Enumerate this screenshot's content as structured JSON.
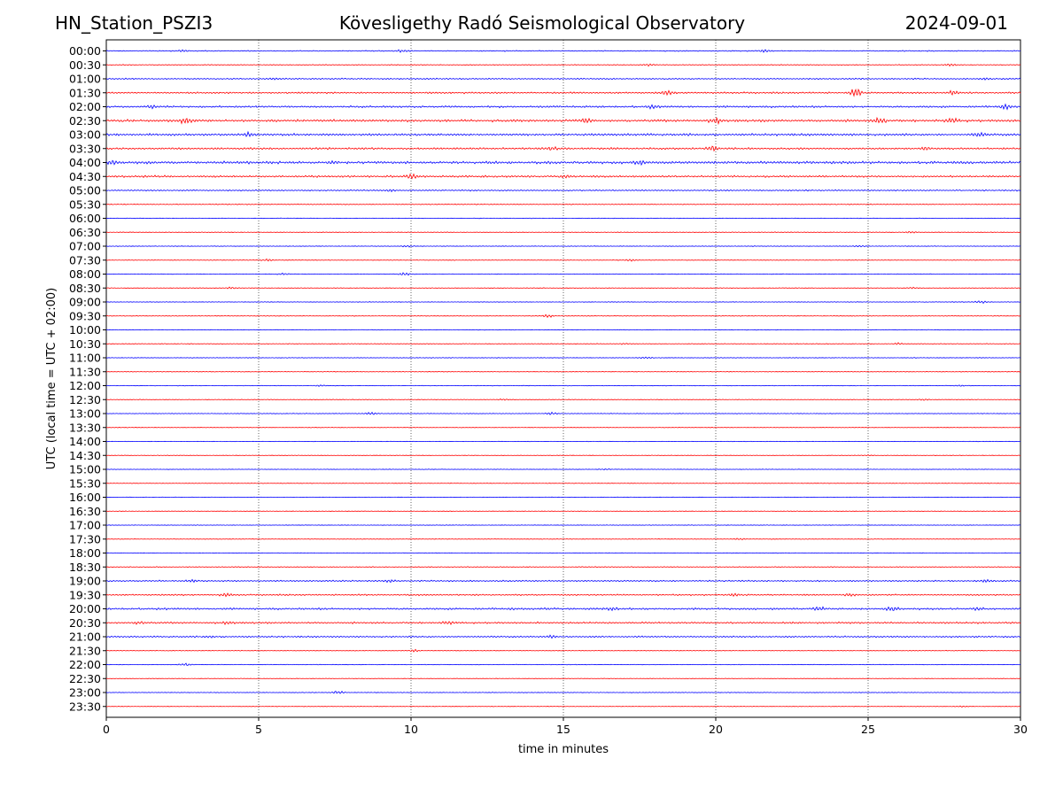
{
  "header": {
    "station": "HN_Station_PSZI3",
    "observatory": "Kövesligethy Radó Seismological Observatory",
    "date": "2024-09-01"
  },
  "chart_data": {
    "type": "line",
    "title": "Kövesligethy Radó Seismological Observatory",
    "xlabel": "time in minutes",
    "ylabel": "UTC (local time = UTC + 02:00)",
    "xlim": [
      0,
      30
    ],
    "xticks": [
      0,
      5,
      10,
      15,
      20,
      25,
      30
    ],
    "grid": "vertical dotted lines at x ticks",
    "colors": {
      "even_rows": "#0000ff",
      "odd_rows": "#ff0000"
    },
    "rows": [
      {
        "label": "00:00",
        "amp": 0.5,
        "events": [
          {
            "t": 2.5,
            "a": 1.0
          },
          {
            "t": 9.7,
            "a": 1.2
          },
          {
            "t": 21.6,
            "a": 1.6
          }
        ]
      },
      {
        "label": "00:30",
        "amp": 0.4,
        "events": [
          {
            "t": 17.8,
            "a": 1.0
          },
          {
            "t": 27.7,
            "a": 1.2
          }
        ]
      },
      {
        "label": "01:00",
        "amp": 0.6,
        "events": [
          {
            "t": 5.5,
            "a": 0.8
          },
          {
            "t": 28.8,
            "a": 1.0
          }
        ]
      },
      {
        "label": "01:30",
        "amp": 0.8,
        "events": [
          {
            "t": 18.4,
            "a": 2.2
          },
          {
            "t": 24.6,
            "a": 4.5
          },
          {
            "t": 27.8,
            "a": 2.2
          }
        ]
      },
      {
        "label": "02:00",
        "amp": 0.9,
        "events": [
          {
            "t": 1.5,
            "a": 1.5
          },
          {
            "t": 17.9,
            "a": 1.5
          },
          {
            "t": 29.5,
            "a": 2.0
          }
        ]
      },
      {
        "label": "02:30",
        "amp": 1.1,
        "events": [
          {
            "t": 2.6,
            "a": 3.0
          },
          {
            "t": 15.7,
            "a": 2.2
          },
          {
            "t": 20.0,
            "a": 3.0
          },
          {
            "t": 25.4,
            "a": 3.5
          },
          {
            "t": 27.8,
            "a": 2.5
          }
        ]
      },
      {
        "label": "03:00",
        "amp": 1.0,
        "events": [
          {
            "t": 4.7,
            "a": 2.0
          },
          {
            "t": 28.6,
            "a": 2.2
          }
        ]
      },
      {
        "label": "03:30",
        "amp": 0.9,
        "events": [
          {
            "t": 14.6,
            "a": 1.4
          },
          {
            "t": 19.9,
            "a": 3.0
          },
          {
            "t": 26.9,
            "a": 2.2
          }
        ]
      },
      {
        "label": "04:00",
        "amp": 1.2,
        "events": [
          {
            "t": 0.2,
            "a": 2.2
          },
          {
            "t": 7.4,
            "a": 2.0
          },
          {
            "t": 17.5,
            "a": 2.0
          }
        ]
      },
      {
        "label": "04:30",
        "amp": 0.9,
        "events": [
          {
            "t": 10.0,
            "a": 2.5
          },
          {
            "t": 15.1,
            "a": 1.8
          }
        ]
      },
      {
        "label": "05:00",
        "amp": 0.6,
        "events": [
          {
            "t": 9.3,
            "a": 1.2
          }
        ]
      },
      {
        "label": "05:30",
        "amp": 0.4,
        "events": []
      },
      {
        "label": "06:00",
        "amp": 0.3,
        "events": []
      },
      {
        "label": "06:30",
        "amp": 0.3,
        "events": [
          {
            "t": 26.4,
            "a": 1.0
          }
        ]
      },
      {
        "label": "07:00",
        "amp": 0.3,
        "events": [
          {
            "t": 9.9,
            "a": 1.0
          },
          {
            "t": 24.7,
            "a": 0.8
          }
        ]
      },
      {
        "label": "07:30",
        "amp": 0.3,
        "events": [
          {
            "t": 5.3,
            "a": 1.4
          },
          {
            "t": 17.2,
            "a": 1.0
          }
        ]
      },
      {
        "label": "08:00",
        "amp": 0.3,
        "events": [
          {
            "t": 5.8,
            "a": 1.0
          },
          {
            "t": 9.8,
            "a": 1.8
          }
        ]
      },
      {
        "label": "08:30",
        "amp": 0.3,
        "events": [
          {
            "t": 4.1,
            "a": 1.0
          },
          {
            "t": 26.5,
            "a": 1.0
          }
        ]
      },
      {
        "label": "09:00",
        "amp": 0.3,
        "events": [
          {
            "t": 28.7,
            "a": 1.6
          }
        ]
      },
      {
        "label": "09:30",
        "amp": 0.3,
        "events": [
          {
            "t": 14.5,
            "a": 1.5
          }
        ]
      },
      {
        "label": "10:00",
        "amp": 0.3,
        "events": []
      },
      {
        "label": "10:30",
        "amp": 0.3,
        "events": [
          {
            "t": 17.0,
            "a": 0.8
          },
          {
            "t": 26.0,
            "a": 1.0
          }
        ]
      },
      {
        "label": "11:00",
        "amp": 0.3,
        "events": [
          {
            "t": 17.7,
            "a": 1.2
          }
        ]
      },
      {
        "label": "11:30",
        "amp": 0.3,
        "events": []
      },
      {
        "label": "12:00",
        "amp": 0.3,
        "events": [
          {
            "t": 7.0,
            "a": 0.8
          },
          {
            "t": 28.0,
            "a": 0.7
          }
        ]
      },
      {
        "label": "12:30",
        "amp": 0.3,
        "events": [
          {
            "t": 13.0,
            "a": 0.8
          },
          {
            "t": 26.8,
            "a": 0.8
          }
        ]
      },
      {
        "label": "13:00",
        "amp": 0.3,
        "events": [
          {
            "t": 8.7,
            "a": 1.6
          },
          {
            "t": 14.6,
            "a": 1.4
          }
        ]
      },
      {
        "label": "13:30",
        "amp": 0.25,
        "events": []
      },
      {
        "label": "14:00",
        "amp": 0.25,
        "events": []
      },
      {
        "label": "14:30",
        "amp": 0.25,
        "events": [
          {
            "t": 25.0,
            "a": 0.6
          }
        ]
      },
      {
        "label": "15:00",
        "amp": 0.25,
        "events": [
          {
            "t": 16.4,
            "a": 0.6
          }
        ]
      },
      {
        "label": "15:30",
        "amp": 0.25,
        "events": []
      },
      {
        "label": "16:00",
        "amp": 0.25,
        "events": []
      },
      {
        "label": "16:30",
        "amp": 0.25,
        "events": []
      },
      {
        "label": "17:00",
        "amp": 0.25,
        "events": []
      },
      {
        "label": "17:30",
        "amp": 0.3,
        "events": [
          {
            "t": 20.8,
            "a": 0.9
          }
        ]
      },
      {
        "label": "18:00",
        "amp": 0.3,
        "events": []
      },
      {
        "label": "18:30",
        "amp": 0.4,
        "events": []
      },
      {
        "label": "19:00",
        "amp": 0.7,
        "events": [
          {
            "t": 2.8,
            "a": 1.4
          },
          {
            "t": 9.3,
            "a": 1.2
          },
          {
            "t": 28.9,
            "a": 1.6
          }
        ]
      },
      {
        "label": "19:30",
        "amp": 0.7,
        "events": [
          {
            "t": 3.9,
            "a": 1.5
          },
          {
            "t": 20.6,
            "a": 1.2
          },
          {
            "t": 24.4,
            "a": 1.2
          }
        ]
      },
      {
        "label": "20:00",
        "amp": 0.9,
        "events": [
          {
            "t": 16.6,
            "a": 1.4
          },
          {
            "t": 23.4,
            "a": 2.0
          },
          {
            "t": 25.8,
            "a": 2.2
          },
          {
            "t": 28.6,
            "a": 1.4
          }
        ]
      },
      {
        "label": "20:30",
        "amp": 0.8,
        "events": [
          {
            "t": 1.1,
            "a": 1.5
          },
          {
            "t": 4.0,
            "a": 1.6
          },
          {
            "t": 11.2,
            "a": 1.3
          }
        ]
      },
      {
        "label": "21:00",
        "amp": 0.7,
        "events": [
          {
            "t": 3.4,
            "a": 1.3
          },
          {
            "t": 14.6,
            "a": 1.4
          }
        ]
      },
      {
        "label": "21:30",
        "amp": 0.3,
        "events": [
          {
            "t": 10.1,
            "a": 1.3
          }
        ]
      },
      {
        "label": "22:00",
        "amp": 0.3,
        "events": [
          {
            "t": 2.6,
            "a": 1.6
          }
        ]
      },
      {
        "label": "22:30",
        "amp": 0.25,
        "events": []
      },
      {
        "label": "23:00",
        "amp": 0.3,
        "events": [
          {
            "t": 7.6,
            "a": 2.0
          }
        ]
      },
      {
        "label": "23:30",
        "amp": 0.25,
        "events": [
          {
            "t": 28.1,
            "a": 0.6
          }
        ]
      }
    ]
  }
}
